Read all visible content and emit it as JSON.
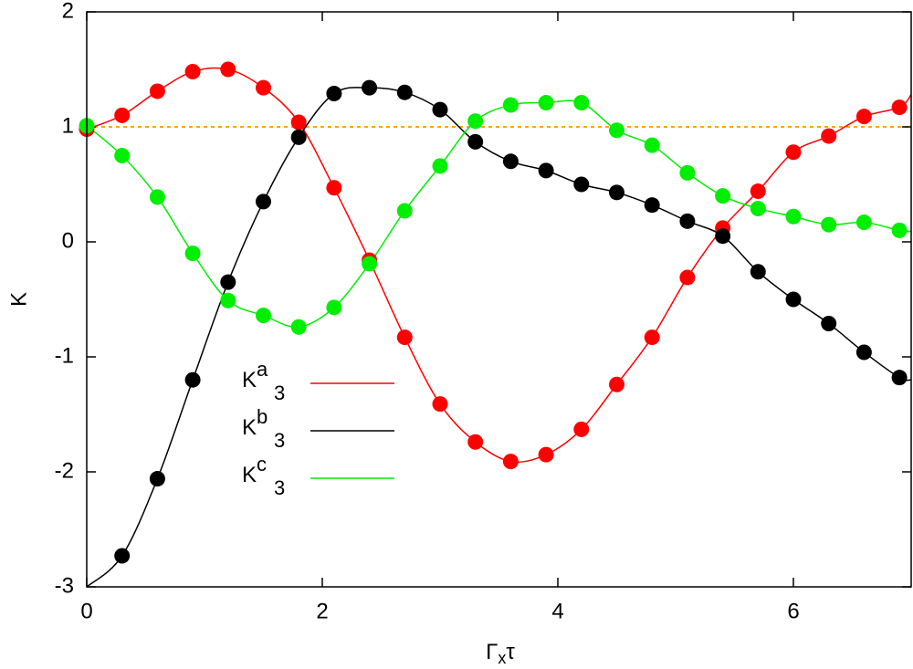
{
  "chart_data": {
    "type": "line",
    "ylabel": "K",
    "xlabel_parts": [
      "Γ",
      "x",
      "τ"
    ],
    "xlim": [
      0,
      7
    ],
    "ylim": [
      -3,
      2
    ],
    "xticks": [
      0,
      2,
      4,
      6
    ],
    "yticks": [
      -3,
      -2,
      -1,
      0,
      1,
      2
    ],
    "reference_line": {
      "value": 1,
      "color": "#ffa500"
    },
    "x": [
      0,
      0.3,
      0.6,
      0.9,
      1.2,
      1.5,
      1.8,
      2.1,
      2.4,
      2.7,
      3.0,
      3.3,
      3.6,
      3.9,
      4.2,
      4.5,
      4.8,
      5.1,
      5.4,
      5.7,
      6.0,
      6.3,
      6.6,
      6.9,
      7.0
    ],
    "points_x": [
      0,
      0.3,
      0.6,
      0.9,
      1.2,
      1.5,
      1.8,
      2.1,
      2.4,
      2.7,
      3.0,
      3.3,
      3.6,
      3.9,
      4.2,
      4.5,
      4.8,
      5.1,
      5.4,
      5.7,
      6.0,
      6.3,
      6.6,
      6.9
    ],
    "series": [
      {
        "name": "K",
        "superscript": "a",
        "subscript": "3",
        "color": "#ff0000",
        "values": [
          0.98,
          1.1,
          1.31,
          1.48,
          1.5,
          1.34,
          1.04,
          0.47,
          -0.16,
          -0.83,
          -1.41,
          -1.74,
          -1.91,
          -1.85,
          -1.63,
          -1.24,
          -0.83,
          -0.31,
          0.12,
          0.44,
          0.78,
          0.92,
          1.09,
          1.17,
          1.28
        ],
        "points": [
          0.98,
          1.1,
          1.31,
          1.48,
          1.5,
          1.34,
          1.04,
          0.47,
          -0.16,
          -0.83,
          -1.41,
          -1.74,
          -1.91,
          -1.85,
          -1.63,
          -1.24,
          -0.83,
          -0.31,
          0.12,
          0.44,
          0.78,
          0.92,
          1.09,
          1.17
        ]
      },
      {
        "name": "K",
        "superscript": "b",
        "subscript": "3",
        "color": "#000000",
        "values": [
          -3.0,
          -2.73,
          -2.06,
          -1.2,
          -0.35,
          0.35,
          0.91,
          1.29,
          1.34,
          1.3,
          1.15,
          0.87,
          0.7,
          0.62,
          0.5,
          0.43,
          0.32,
          0.18,
          0.05,
          -0.26,
          -0.5,
          -0.71,
          -0.96,
          -1.18,
          -1.2
        ],
        "points": [
          null,
          -2.73,
          -2.06,
          -1.2,
          -0.35,
          0.35,
          0.91,
          1.29,
          1.34,
          1.3,
          1.15,
          0.87,
          0.7,
          0.62,
          0.5,
          0.43,
          0.32,
          0.18,
          0.05,
          -0.26,
          -0.5,
          -0.71,
          -0.96,
          -1.18
        ]
      },
      {
        "name": "K",
        "superscript": "c",
        "subscript": "3",
        "color": "#00ee00",
        "values": [
          1.01,
          0.75,
          0.39,
          -0.1,
          -0.51,
          -0.64,
          -0.74,
          -0.57,
          -0.19,
          0.27,
          0.66,
          1.05,
          1.19,
          1.21,
          1.21,
          0.97,
          0.84,
          0.6,
          0.4,
          0.29,
          0.22,
          0.15,
          0.17,
          0.1,
          0.09
        ],
        "points": [
          1.01,
          0.75,
          0.39,
          -0.1,
          -0.51,
          -0.64,
          -0.74,
          -0.57,
          -0.19,
          0.27,
          0.66,
          1.05,
          1.19,
          1.21,
          1.21,
          0.97,
          0.84,
          0.6,
          0.4,
          0.29,
          0.22,
          0.15,
          0.17,
          0.1
        ]
      }
    ]
  }
}
